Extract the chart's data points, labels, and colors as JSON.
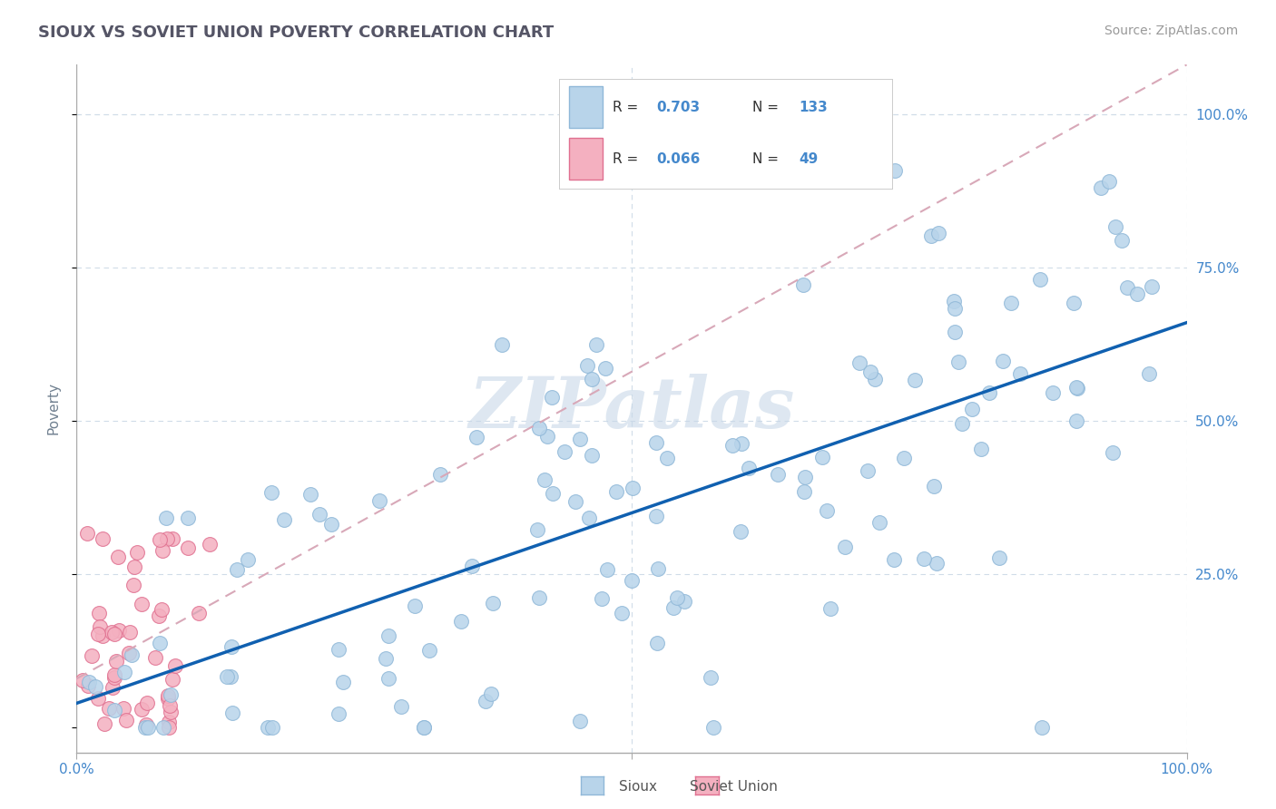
{
  "title": "SIOUX VS SOVIET UNION POVERTY CORRELATION CHART",
  "source": "Source: ZipAtlas.com",
  "ylabel": "Poverty",
  "sioux_color": "#b8d4ea",
  "sioux_edge": "#90b8d8",
  "soviet_color": "#f4b0c0",
  "soviet_edge": "#e07090",
  "trendline_sioux_color": "#1060b0",
  "trendline_soviet_color": "#e0a0b0",
  "R_sioux": 0.703,
  "N_sioux": 133,
  "R_soviet": 0.066,
  "N_soviet": 49,
  "watermark": "ZIPatlas",
  "background_color": "#ffffff",
  "grid_color": "#d0dce8",
  "title_color": "#555566",
  "axis_label_color": "#708090",
  "tick_label_color": "#4488cc",
  "legend_color": "#4488cc",
  "legend_label_color": "#333333"
}
